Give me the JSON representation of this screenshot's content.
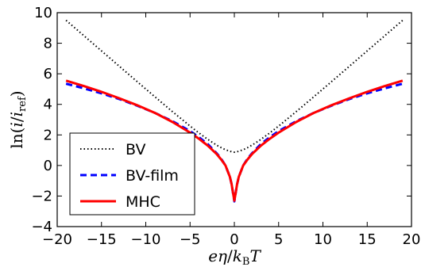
{
  "chart_data": {
    "type": "line",
    "xlabel": "eη/k_B T",
    "ylabel": "ln(i/i_ref)",
    "xlim": [
      -20,
      20
    ],
    "ylim": [
      -4,
      10
    ],
    "xticks": [
      -20,
      -15,
      -10,
      -5,
      0,
      5,
      10,
      15,
      20
    ],
    "yticks": [
      -4,
      -2,
      0,
      2,
      4,
      6,
      8,
      10
    ],
    "x_tick_labels": [
      "−20",
      "−15",
      "−10",
      "−5",
      "0",
      "5",
      "10",
      "15",
      "20"
    ],
    "y_tick_labels": [
      "−4",
      "−2",
      "0",
      "2",
      "4",
      "6",
      "8",
      "10"
    ],
    "grid": false,
    "legend_position": "bottom-left",
    "x": [
      -19,
      -17,
      -15,
      -13,
      -11,
      -9,
      -7,
      -5,
      -4,
      -3,
      -2,
      -1.5,
      -1,
      -0.5,
      -0.3,
      -0.15,
      0,
      0.15,
      0.3,
      0.5,
      1,
      1.5,
      2,
      3,
      4,
      5,
      7,
      9,
      11,
      13,
      15,
      17,
      19
    ],
    "series": [
      {
        "name": "BV",
        "color": "#000000",
        "style": "dotted",
        "values": [
          9.5,
          8.5,
          7.5,
          6.5,
          5.5,
          4.51,
          3.53,
          2.58,
          2.13,
          1.71,
          1.33,
          1.17,
          1.03,
          0.93,
          0.9,
          0.88,
          0.87,
          0.88,
          0.9,
          0.93,
          1.03,
          1.17,
          1.33,
          1.71,
          2.13,
          2.58,
          3.53,
          4.51,
          5.5,
          6.5,
          7.5,
          8.5,
          9.5
        ]
      },
      {
        "name": "BV-film",
        "color": "#0000ff",
        "style": "dashed",
        "values": [
          5.35,
          5.05,
          4.72,
          4.35,
          3.92,
          3.45,
          2.9,
          2.25,
          1.85,
          1.4,
          0.8,
          0.45,
          0.0,
          -0.75,
          -1.25,
          -1.8,
          -2.35,
          -1.8,
          -1.25,
          -0.75,
          0.0,
          0.45,
          0.8,
          1.4,
          1.85,
          2.25,
          2.9,
          3.45,
          3.92,
          4.35,
          4.72,
          5.05,
          5.35
        ]
      },
      {
        "name": "MHC",
        "color": "#ff0000",
        "style": "solid",
        "values": [
          5.55,
          5.2,
          4.82,
          4.4,
          3.95,
          3.45,
          2.85,
          2.15,
          1.75,
          1.3,
          0.75,
          0.4,
          0.0,
          -0.75,
          -1.25,
          -1.8,
          -2.3,
          -1.8,
          -1.25,
          -0.75,
          0.0,
          0.4,
          0.75,
          1.3,
          1.75,
          2.15,
          2.85,
          3.45,
          3.95,
          4.4,
          4.82,
          5.2,
          5.55
        ]
      }
    ]
  }
}
